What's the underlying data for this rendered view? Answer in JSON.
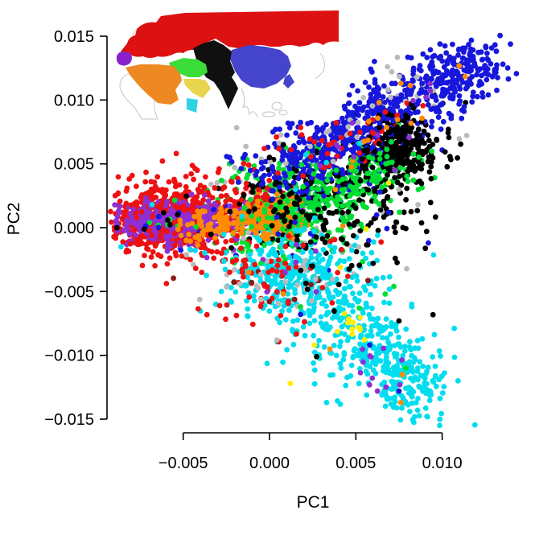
{
  "chart_data": {
    "type": "scatter",
    "xlabel": "PC1",
    "ylabel": "PC2",
    "xlim": [
      -0.0095,
      0.0145
    ],
    "ylim": [
      -0.016,
      0.0155
    ],
    "grid": false,
    "legend_position": "inset-map-top-left",
    "xticks": {
      "values": [
        -0.005,
        0.0,
        0.005,
        0.01
      ],
      "labels": [
        "−0.005",
        "0.000",
        "0.005",
        "0.010"
      ]
    },
    "yticks": {
      "values": [
        0.015,
        0.01,
        0.005,
        0.0,
        -0.005,
        -0.01,
        -0.015
      ],
      "labels": [
        "0.015",
        "0.010",
        "0.005",
        "0.000",
        "−0.005",
        "−0.010",
        "−0.015"
      ]
    },
    "point_radius_px": 3.4,
    "seed": 42,
    "palette": {
      "red": "#EE1111",
      "purple": "#8E2FD4",
      "orange": "#FF8C00",
      "green": "#00DD33",
      "blue": "#1717DC",
      "black": "#000000",
      "cyan": "#00DDEE",
      "yellow": "#FFEE00",
      "gray": "#BBBBBB",
      "darkred": "#8B1A1A"
    },
    "clusters": [
      {
        "name": "gray-upper-band",
        "color": "gray",
        "shape": "band",
        "x1": -0.002,
        "y1": 0.0025,
        "x2": 0.009,
        "y2": 0.0095,
        "w": 0.0022,
        "n": 45
      },
      {
        "name": "gray-mid",
        "color": "gray",
        "shape": "gauss",
        "cx": 0.002,
        "cy": -0.0025,
        "sx": 0.0028,
        "sy": 0.0018,
        "n": 35
      },
      {
        "name": "gray-left",
        "color": "gray",
        "shape": "gauss",
        "cx": -0.004,
        "cy": 0.0006,
        "sx": 0.002,
        "sy": 0.0012,
        "n": 12
      },
      {
        "name": "green-central-mass",
        "color": "green",
        "shape": "gauss",
        "cx": 0.001,
        "cy": 0.002,
        "sx": 0.002,
        "sy": 0.0018,
        "n": 230
      },
      {
        "name": "green-low",
        "color": "green",
        "shape": "gauss",
        "cx": -0.0012,
        "cy": -0.0012,
        "sx": 0.0013,
        "sy": 0.0009,
        "n": 45
      },
      {
        "name": "red-spread",
        "color": "red",
        "shape": "gauss",
        "cx": -0.0018,
        "cy": 0.0018,
        "sx": 0.002,
        "sy": 0.0015,
        "n": 110
      },
      {
        "name": "black-mid-scatter",
        "color": "black",
        "shape": "gauss",
        "cx": 0.0035,
        "cy": -0.0002,
        "sx": 0.0028,
        "sy": 0.002,
        "n": 55
      },
      {
        "name": "blue-mid-scatter",
        "color": "blue",
        "shape": "gauss",
        "cx": 0.001,
        "cy": 0.0005,
        "sx": 0.0025,
        "sy": 0.002,
        "n": 35
      },
      {
        "name": "cyan-mid-scatter",
        "color": "cyan",
        "shape": "gauss",
        "cx": 0.0035,
        "cy": -0.0012,
        "sx": 0.0028,
        "sy": 0.0014,
        "n": 22
      },
      {
        "name": "red-west-eurasia-core",
        "color": "red",
        "shape": "gauss",
        "cx": -0.0058,
        "cy": 0.0008,
        "sx": 0.0019,
        "sy": 0.00145,
        "n": 560
      },
      {
        "name": "purple-iberia-core",
        "color": "purple",
        "shape": "gauss",
        "cx": -0.0053,
        "cy": 0.0004,
        "sx": 0.00165,
        "sy": 0.00078,
        "n": 500
      },
      {
        "name": "red-overlay",
        "color": "red",
        "shape": "gauss",
        "cx": -0.0052,
        "cy": 0.0002,
        "sx": 0.0021,
        "sy": 0.0013,
        "n": 90
      },
      {
        "name": "green-in-left",
        "color": "green",
        "shape": "gauss",
        "cx": -0.0058,
        "cy": 0.0004,
        "sx": 0.0012,
        "sy": 0.0007,
        "n": 7
      },
      {
        "name": "blue-in-left",
        "color": "blue",
        "shape": "gauss",
        "cx": -0.005,
        "cy": 0.0002,
        "sx": 0.0016,
        "sy": 0.0008,
        "n": 9
      },
      {
        "name": "black-in-left",
        "color": "black",
        "shape": "gauss",
        "cx": -0.0045,
        "cy": 0.0005,
        "sx": 0.0016,
        "sy": 0.001,
        "n": 8
      },
      {
        "name": "cyan-in-left",
        "color": "cyan",
        "shape": "points",
        "pts": [
          [
            -0.0086,
            -0.0015
          ],
          [
            -0.0046,
            -0.0017
          ],
          [
            -0.0068,
            0.0018
          ]
        ]
      },
      {
        "name": "orange-north-africa-band",
        "color": "orange",
        "shape": "band",
        "x1": -0.0045,
        "y1": 0.0002,
        "x2": 0.0015,
        "y2": 0.0008,
        "w": 0.00075,
        "n": 150
      },
      {
        "name": "orange-dense",
        "color": "orange",
        "shape": "gauss",
        "cx": 0.0006,
        "cy": 0.0007,
        "sx": 0.00095,
        "sy": 0.0008,
        "n": 90
      },
      {
        "name": "green-arm",
        "color": "green",
        "shape": "band",
        "x1": -0.0005,
        "y1": 0.0002,
        "x2": 0.0068,
        "y2": 0.0051,
        "w": 0.00125,
        "n": 200
      },
      {
        "name": "black-arm",
        "color": "black",
        "shape": "band",
        "x1": 0.0003,
        "y1": 0.0008,
        "x2": 0.0086,
        "y2": 0.0066,
        "w": 0.0016,
        "n": 300
      },
      {
        "name": "blue-east-asia-arm",
        "color": "blue",
        "shape": "band",
        "x1": 0.0002,
        "y1": 0.0042,
        "x2": 0.0125,
        "y2": 0.0133,
        "w": 0.00135,
        "n": 480
      },
      {
        "name": "blue-arm-wide",
        "color": "blue",
        "shape": "band",
        "x1": 0.0008,
        "y1": 0.0048,
        "x2": 0.0085,
        "y2": 0.0098,
        "w": 0.0019,
        "n": 190
      },
      {
        "name": "gray-arm-top",
        "color": "gray",
        "shape": "band",
        "x1": 0.0,
        "y1": 0.006,
        "x2": 0.009,
        "y2": 0.0118,
        "w": 0.0011,
        "n": 30
      },
      {
        "name": "red-on-arm",
        "color": "red",
        "shape": "band",
        "x1": 0.0,
        "y1": 0.0038,
        "x2": 0.008,
        "y2": 0.0088,
        "w": 0.0014,
        "n": 45
      },
      {
        "name": "black-dense-blob",
        "color": "black",
        "shape": "gauss",
        "cx": 0.0078,
        "cy": 0.0063,
        "sx": 0.00095,
        "sy": 0.00115,
        "n": 170
      },
      {
        "name": "blue-arm-tip",
        "color": "blue",
        "shape": "band",
        "x1": 0.009,
        "y1": 0.0105,
        "x2": 0.0122,
        "y2": 0.0131,
        "w": 0.0009,
        "n": 90
      },
      {
        "name": "green-arm-upper",
        "color": "green",
        "shape": "band",
        "x1": 0.003,
        "y1": 0.0022,
        "x2": 0.0072,
        "y2": 0.0054,
        "w": 0.0009,
        "n": 80
      },
      {
        "name": "orange-on-arm",
        "color": "orange",
        "shape": "band",
        "x1": 0.003,
        "y1": 0.004,
        "x2": 0.0115,
        "y2": 0.0122,
        "w": 0.0011,
        "n": 16
      },
      {
        "name": "purple-on-arm",
        "color": "purple",
        "shape": "band",
        "x1": 0.002,
        "y1": 0.0035,
        "x2": 0.0115,
        "y2": 0.0125,
        "w": 0.0012,
        "n": 13
      },
      {
        "name": "cyan-on-arm",
        "color": "cyan",
        "shape": "points",
        "pts": [
          [
            0.0021,
            0.0057
          ],
          [
            0.0033,
            0.0051
          ],
          [
            0.0015,
            0.003
          ],
          [
            0.0052,
            0.0066
          ]
        ]
      },
      {
        "name": "yellow-singles-mid",
        "color": "yellow",
        "shape": "points",
        "pts": [
          [
            0.0069,
            0.0035
          ],
          [
            0.0056,
            -0.0001
          ]
        ]
      },
      {
        "name": "black-right-sparse",
        "color": "black",
        "shape": "gauss",
        "cx": 0.0075,
        "cy": 0.0008,
        "sx": 0.0012,
        "sy": 0.0018,
        "n": 12
      },
      {
        "name": "gray-right-sparse",
        "color": "gray",
        "shape": "points",
        "pts": [
          [
            0.0086,
            0.0018
          ],
          [
            0.0075,
            0.003
          ]
        ]
      },
      {
        "name": "blue-right-sparse",
        "color": "blue",
        "shape": "points",
        "pts": [
          [
            0.0092,
            -0.0012
          ],
          [
            0.0069,
            0.0012
          ],
          [
            0.0064,
            0.0028
          ]
        ]
      },
      {
        "name": "green-right-sparse",
        "color": "green",
        "shape": "points",
        "pts": [
          [
            0.0067,
            -0.0052
          ],
          [
            0.0072,
            -0.0046
          ],
          [
            0.0094,
            0.006
          ]
        ]
      },
      {
        "name": "cyan-upper",
        "color": "cyan",
        "shape": "gauss",
        "cx": 0.0012,
        "cy": -0.0035,
        "sx": 0.0021,
        "sy": 0.0013,
        "n": 150
      },
      {
        "name": "cyan-horn-main",
        "color": "cyan",
        "shape": "band",
        "x1": 0.0005,
        "y1": -0.0032,
        "x2": 0.0062,
        "y2": -0.0098,
        "w": 0.0021,
        "n": 330
      },
      {
        "name": "cyan-tail",
        "color": "cyan",
        "shape": "band",
        "x1": 0.0055,
        "y1": -0.0085,
        "x2": 0.009,
        "y2": -0.0138,
        "w": 0.0012,
        "n": 150
      },
      {
        "name": "cyan-tail-blob",
        "color": "cyan",
        "shape": "gauss",
        "cx": 0.0085,
        "cy": -0.0122,
        "sx": 0.001,
        "sy": 0.0013,
        "n": 70
      },
      {
        "name": "red-bottom",
        "color": "red",
        "shape": "gauss",
        "cx": 0.0005,
        "cy": -0.0038,
        "sx": 0.002,
        "sy": 0.0019,
        "n": 65
      },
      {
        "name": "darkred-bottom",
        "color": "darkred",
        "shape": "gauss",
        "cx": 0.001,
        "cy": -0.004,
        "sx": 0.0025,
        "sy": 0.002,
        "n": 9
      },
      {
        "name": "gray-bottom",
        "color": "gray",
        "shape": "gauss",
        "cx": 0.0015,
        "cy": -0.004,
        "sx": 0.0025,
        "sy": 0.0018,
        "n": 25
      },
      {
        "name": "purple-in-tail",
        "color": "purple",
        "shape": "gauss",
        "cx": 0.0066,
        "cy": -0.0103,
        "sx": 0.0013,
        "sy": 0.0016,
        "n": 12
      },
      {
        "name": "purple-bottom",
        "color": "purple",
        "shape": "gauss",
        "cx": 0.0015,
        "cy": -0.0035,
        "sx": 0.002,
        "sy": 0.0015,
        "n": 8
      },
      {
        "name": "orange-bottom",
        "color": "orange",
        "shape": "points",
        "pts": [
          [
            0.0076,
            -0.0137
          ],
          [
            0.0077,
            -0.0115
          ],
          [
            0.0035,
            -0.0095
          ],
          [
            0.0008,
            -0.0052
          ],
          [
            -0.0012,
            -0.0035
          ]
        ]
      },
      {
        "name": "blue-bottom",
        "color": "blue",
        "shape": "points",
        "pts": [
          [
            0.0058,
            -0.0092
          ],
          [
            0.0018,
            -0.0068
          ],
          [
            0.0005,
            -0.0005
          ],
          [
            0.0075,
            -0.0128
          ]
        ]
      },
      {
        "name": "green-bottom",
        "color": "green",
        "shape": "points",
        "pts": [
          [
            0.0079,
            -0.011
          ],
          [
            0.0018,
            -0.0062
          ],
          [
            -0.0005,
            -0.0028
          ],
          [
            0.0052,
            -0.0063
          ]
        ]
      },
      {
        "name": "black-bottom",
        "color": "black",
        "shape": "gauss",
        "cx": 0.004,
        "cy": -0.005,
        "sx": 0.0028,
        "sy": 0.0025,
        "n": 14
      },
      {
        "name": "yellow-cluster",
        "color": "yellow",
        "shape": "gauss",
        "cx": 0.0049,
        "cy": -0.0079,
        "sx": 0.00042,
        "sy": 0.00055,
        "n": 14
      },
      {
        "name": "yellow-singles-bottom",
        "color": "yellow",
        "shape": "points",
        "pts": [
          [
            0.0041,
            -0.0031
          ],
          [
            0.0026,
            -0.0092
          ],
          [
            0.0012,
            -0.0122
          ]
        ]
      },
      {
        "name": "red-top-fringe",
        "color": "red",
        "shape": "points",
        "pts": [
          [
            -0.0003,
            0.0062
          ],
          [
            0.0004,
            0.0071
          ],
          [
            -0.0012,
            0.0049
          ]
        ]
      },
      {
        "name": "blue-top-fringe",
        "color": "blue",
        "shape": "points",
        "pts": [
          [
            0.0002,
            0.0075
          ],
          [
            -0.0008,
            0.0041
          ]
        ]
      },
      {
        "name": "black-top-fringe",
        "color": "black",
        "shape": "points",
        "pts": [
          [
            0.0,
            0.0055
          ],
          [
            0.0008,
            0.0065
          ],
          [
            0.006,
            -0.0028
          ],
          [
            0.0075,
            -0.0073
          ],
          [
            0.0091,
            -0.0003
          ]
        ]
      }
    ]
  },
  "inset_map": {
    "outline_color": "#c4c4c4",
    "regions": {
      "europe-russia": "#DD1111",
      "iberia": "#8A22CC",
      "north-africa": "#EE8822",
      "anatolia-levant": "#3ADD3A",
      "arabia": "#E8D44D",
      "horn-of-africa": "#2FD4E4",
      "central-south-asia": "#101010",
      "east-asia": "#4444CC"
    }
  }
}
